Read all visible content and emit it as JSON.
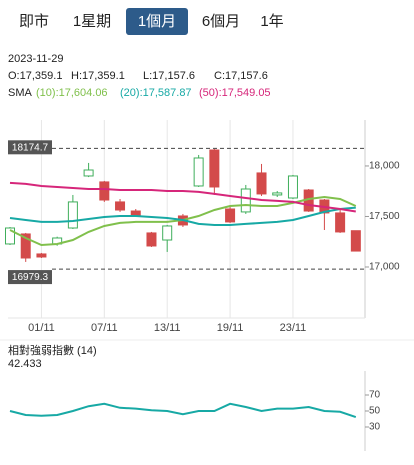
{
  "tabs": [
    {
      "label": "即市",
      "selected": false
    },
    {
      "label": "1星期",
      "selected": false
    },
    {
      "label": "1個月",
      "selected": true
    },
    {
      "label": "6個月",
      "selected": false
    },
    {
      "label": "1年",
      "selected": false
    }
  ],
  "chart_data": [
    {
      "type": "candlestick",
      "date": "2023-11-29",
      "ohlc_labels": [
        "O:17,359.1",
        "H:17,359.1",
        "L:17,157.6",
        "C:17,157.6"
      ],
      "sma_label": "SMA",
      "categories": [
        null,
        null,
        "01/11",
        null,
        null,
        null,
        "07/11",
        null,
        null,
        null,
        "13/11",
        null,
        null,
        null,
        "19/11",
        null,
        null,
        null,
        "23/11",
        null,
        null,
        null,
        null
      ],
      "open": [
        17228,
        17327,
        17129,
        17228,
        17386,
        17901,
        17842,
        17644,
        17554,
        17337,
        17267,
        17505,
        17802,
        18158,
        17574,
        17545,
        17931,
        17713,
        17683,
        17762,
        17663,
        17535,
        17359.1
      ],
      "high": [
        17396,
        17337,
        17139,
        17300,
        17713,
        18030,
        17852,
        17673,
        17574,
        17347,
        17416,
        17525,
        18109,
        18168,
        17594,
        17812,
        18020,
        17752,
        17911,
        17772,
        17673,
        17564,
        17359.1
      ],
      "low": [
        17218,
        17050,
        17089,
        17210,
        17376,
        17890,
        17644,
        17545,
        17495,
        17198,
        17149,
        17396,
        17792,
        17713,
        17436,
        17525,
        17703,
        17693,
        17673,
        17545,
        17366,
        17337,
        17157.6
      ],
      "close": [
        17386,
        17089,
        17099,
        17287,
        17644,
        17960,
        17663,
        17564,
        17505,
        17208,
        17406,
        17416,
        18079,
        17792,
        17446,
        17772,
        17723,
        17733,
        17901,
        17554,
        17535,
        17347,
        17157.6
      ],
      "up_color": "#3fae5b",
      "down_color": "#d34a4a",
      "series": [
        {
          "name": "(10)",
          "last_label": ":17,604.06",
          "color": "#80c04c",
          "values": [
            17366,
            17287,
            17218,
            17228,
            17267,
            17347,
            17406,
            17436,
            17446,
            17446,
            17446,
            17465,
            17505,
            17564,
            17604,
            17614,
            17604,
            17604,
            17634,
            17673,
            17693,
            17673,
            17604.06
          ]
        },
        {
          "name": "(20)",
          "last_label": ":17,587.87",
          "color": "#17a9a5",
          "values": [
            17485,
            17465,
            17446,
            17446,
            17455,
            17475,
            17495,
            17505,
            17505,
            17495,
            17485,
            17465,
            17426,
            17416,
            17416,
            17426,
            17436,
            17446,
            17465,
            17505,
            17545,
            17574,
            17587.87
          ]
        },
        {
          "name": "(50)",
          "last_label": ":17,549.05",
          "color": "#d6267a",
          "values": [
            17832,
            17822,
            17802,
            17792,
            17782,
            17772,
            17772,
            17762,
            17762,
            17762,
            17752,
            17752,
            17743,
            17723,
            17703,
            17683,
            17663,
            17654,
            17644,
            17614,
            17594,
            17574,
            17549.05
          ]
        }
      ],
      "reference_lines": [
        18174.7,
        16979.3
      ],
      "ylim": [
        16495,
        18455
      ],
      "yticks": [
        {
          "value": 17000,
          "label": "17,000"
        },
        {
          "value": 17500,
          "label": "17,500"
        },
        {
          "value": 18000,
          "label": "18,000"
        }
      ]
    },
    {
      "type": "line",
      "title": "相對強弱指數 (14)",
      "current_label": "42.433",
      "series": [
        {
          "color": "#17a9a5",
          "values": [
            50,
            45,
            44,
            45,
            50,
            56,
            59,
            54,
            53,
            51,
            50,
            46,
            50,
            50,
            59,
            55,
            50,
            53,
            53,
            55,
            50,
            49,
            42.433
          ]
        }
      ],
      "ylim": [
        0,
        100
      ],
      "yticks": [
        70,
        50,
        30
      ]
    }
  ]
}
